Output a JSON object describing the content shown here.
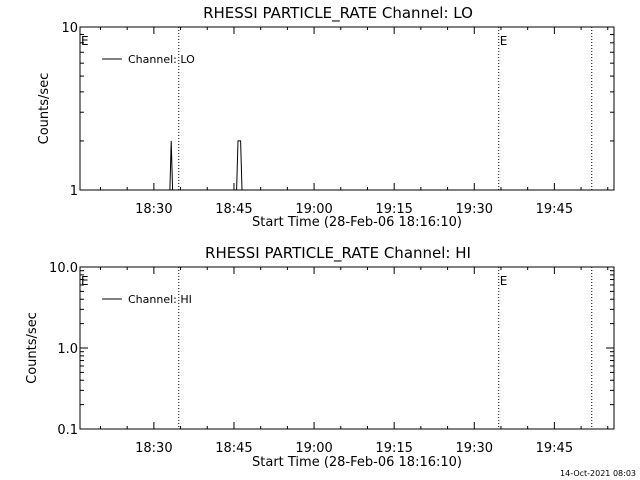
{
  "timestamp": "14-Oct-2021 08:03",
  "chart_data": [
    {
      "type": "line",
      "title": "RHESSI PARTICLE_RATE Channel: LO",
      "xlabel": "Start Time (28-Feb-06 18:16:10)",
      "ylabel": "Counts/sec",
      "y_scale": "log",
      "ylim": [
        1,
        10
      ],
      "y_ticks": [
        1,
        10
      ],
      "y_tick_labels": [
        "1",
        "10"
      ],
      "x_range": [
        "18:16:10",
        "19:56:10"
      ],
      "x_ticks": [
        "18:30",
        "18:45",
        "19:00",
        "19:15",
        "19:30",
        "19:45"
      ],
      "x_tick_labels": [
        "18:30",
        "18:45",
        "19:00",
        "19:15",
        "19:30",
        "19:45"
      ],
      "legend": {
        "label": "Channel: LO",
        "position": "top-left"
      },
      "event_lines": [
        {
          "time": "18:34:40",
          "label": ""
        },
        {
          "time": "19:34:35",
          "label": "E"
        },
        {
          "time": "19:52:00",
          "label": ""
        }
      ],
      "left_marker": "E",
      "series": [
        {
          "name": "Channel: LO",
          "color": "#000000",
          "points": [
            [
              "18:33:00",
              1
            ],
            [
              "18:33:15",
              2
            ],
            [
              "18:33:30",
              1
            ],
            [
              "18:45:30",
              1
            ],
            [
              "18:45:45",
              2
            ],
            [
              "18:46:15",
              2
            ],
            [
              "18:46:30",
              1
            ]
          ]
        }
      ]
    },
    {
      "type": "line",
      "title": "RHESSI PARTICLE_RATE Channel: HI",
      "xlabel": "Start Time (28-Feb-06 18:16:10)",
      "ylabel": "Counts/sec",
      "y_scale": "log",
      "ylim": [
        0.1,
        10
      ],
      "y_ticks": [
        0.1,
        1,
        10
      ],
      "y_tick_labels": [
        "0.1",
        "1.0",
        "10.0"
      ],
      "x_range": [
        "18:16:10",
        "19:56:10"
      ],
      "x_ticks": [
        "18:30",
        "18:45",
        "19:00",
        "19:15",
        "19:30",
        "19:45"
      ],
      "x_tick_labels": [
        "18:30",
        "18:45",
        "19:00",
        "19:15",
        "19:30",
        "19:45"
      ],
      "legend": {
        "label": "Channel: HI",
        "position": "top-left"
      },
      "event_lines": [
        {
          "time": "18:34:40",
          "label": ""
        },
        {
          "time": "19:34:35",
          "label": "E"
        },
        {
          "time": "19:52:00",
          "label": ""
        }
      ],
      "left_marker": "E",
      "series": [
        {
          "name": "Channel: HI",
          "color": "#000000",
          "points": []
        }
      ]
    }
  ]
}
